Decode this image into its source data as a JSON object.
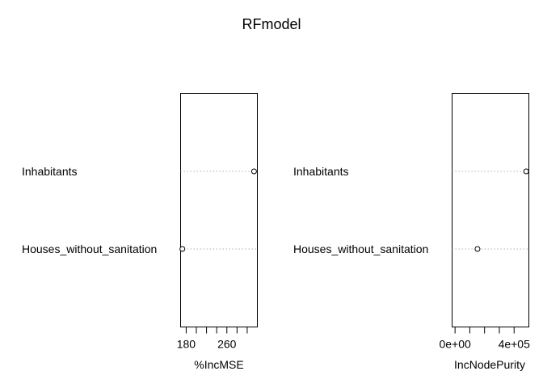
{
  "title": "RFmodel",
  "chart_data": [
    {
      "type": "dotchart",
      "xlabel": "%IncMSE",
      "categories": [
        "Inhabitants",
        "Houses_without_sanitation"
      ],
      "values": [
        313.5,
        172.5
      ],
      "xlim": [
        169,
        320
      ],
      "ticks": [
        180,
        200,
        220,
        240,
        260,
        280,
        300
      ],
      "tick_labels": [
        "180",
        "",
        "",
        "",
        "260",
        "",
        ""
      ],
      "grid": "dotted-horizontal"
    },
    {
      "type": "dotchart",
      "xlabel": "IncNodePurity",
      "categories": [
        "Inhabitants",
        "Houses_without_sanitation"
      ],
      "values": [
        482000,
        152000
      ],
      "xlim": [
        -20000,
        500000
      ],
      "ticks": [
        0,
        100000,
        200000,
        300000,
        400000
      ],
      "tick_labels": [
        "0e+00",
        "",
        "",
        "",
        "4e+05"
      ],
      "grid": "dotted-horizontal"
    }
  ]
}
